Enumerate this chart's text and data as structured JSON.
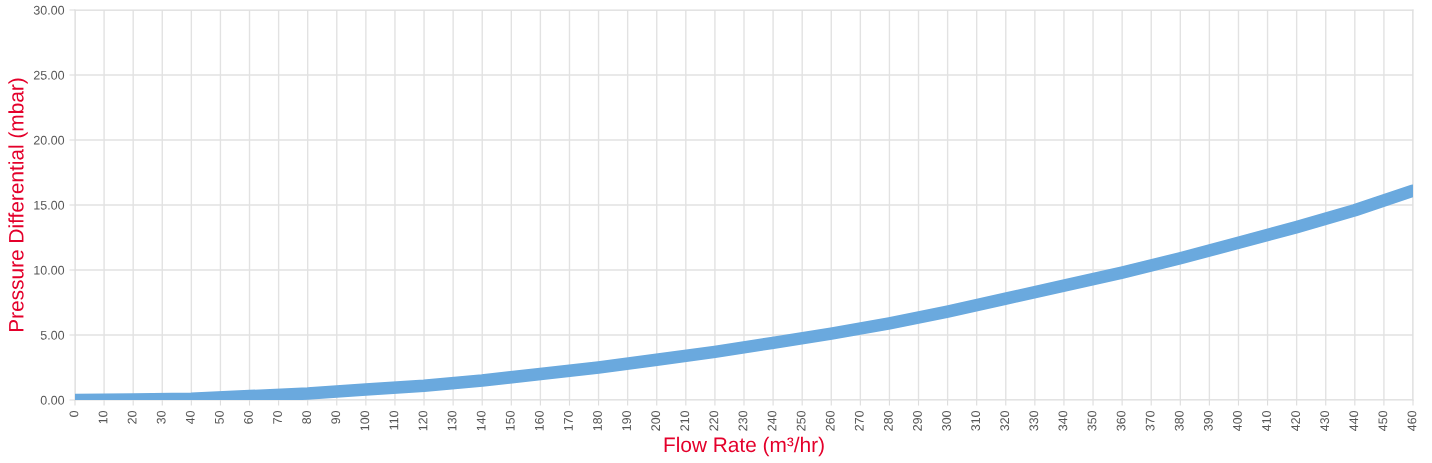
{
  "chart_data": {
    "type": "line",
    "xlabel": "Flow Rate (m³/hr)",
    "ylabel": "Pressure Differential (mbar)",
    "x": [
      0,
      20,
      40,
      60,
      80,
      100,
      120,
      140,
      160,
      180,
      200,
      220,
      240,
      260,
      280,
      300,
      320,
      340,
      360,
      380,
      400,
      420,
      440,
      460
    ],
    "series": [
      {
        "color": "#6aa9de",
        "values": [
          0,
          0.03,
          0.1,
          0.3,
          0.5,
          0.8,
          1.1,
          1.5,
          2.0,
          2.5,
          3.1,
          3.7,
          4.4,
          5.1,
          5.9,
          6.8,
          7.8,
          8.8,
          9.8,
          10.9,
          12.1,
          13.3,
          14.6,
          16.1
        ]
      }
    ],
    "xlim": [
      0,
      460
    ],
    "xticks": [
      0,
      10,
      20,
      30,
      40,
      50,
      60,
      70,
      80,
      90,
      100,
      110,
      120,
      130,
      140,
      150,
      160,
      170,
      180,
      190,
      200,
      210,
      220,
      230,
      240,
      250,
      260,
      270,
      280,
      290,
      300,
      310,
      320,
      330,
      340,
      350,
      360,
      370,
      380,
      390,
      400,
      410,
      420,
      430,
      440,
      450,
      460
    ],
    "ylim": [
      0,
      30
    ],
    "yticks": [
      {
        "value": 0,
        "label": "0.00"
      },
      {
        "value": 5,
        "label": "5.00"
      },
      {
        "value": 10,
        "label": "10.00"
      },
      {
        "value": 15,
        "label": "15.00"
      },
      {
        "value": 20,
        "label": "20.00"
      },
      {
        "value": 25,
        "label": "25.00"
      },
      {
        "value": 30,
        "label": "30.00"
      }
    ],
    "grid": true,
    "line_style": "solid",
    "legend": false
  }
}
